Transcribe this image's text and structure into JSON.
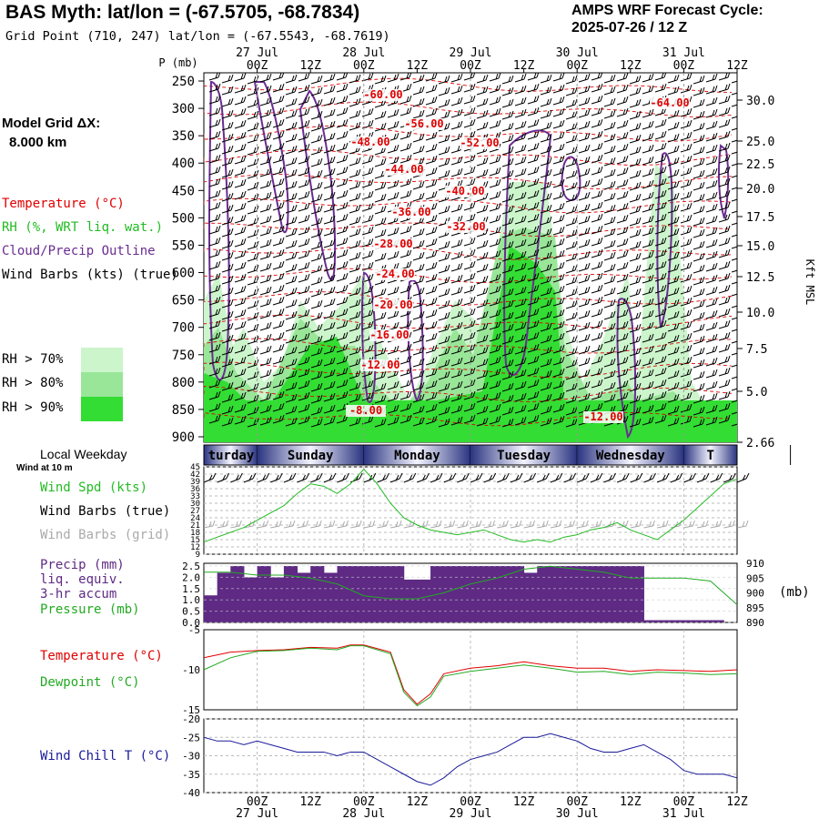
{
  "header": {
    "title": "BAS Myth:  lat/lon = (-67.5705, -68.7834)",
    "subtitle": "Grid Point (710, 247) lat/lon = (-67.5543, -68.7619)",
    "cycle_line1": "AMPS WRF Forecast Cycle:",
    "cycle_line2": "2025-07-26 / 12  Z"
  },
  "model_grid": {
    "label": "Model Grid ΔX:",
    "value": "8.000 km"
  },
  "legends": {
    "temperature": "Temperature (°C)",
    "rh": "RH (%, WRT liq. wat.)",
    "cloud": "Cloud/Precip Outline",
    "wind_barbs_true": "Wind Barbs (kts) (true)",
    "rh_thresholds": [
      "RH > 70%",
      "RH > 80%",
      "RH > 90%"
    ],
    "local_weekday": "Local Weekday",
    "wind_at": "Wind at 10 m",
    "wind_spd": "Wind Spd (kts)",
    "wind_barbs_true2": "Wind Barbs (true)",
    "wind_barbs_grid": "Wind Barbs (grid)",
    "precip": [
      "Precip (mm)",
      "liq. equiv.",
      "3-hr accum"
    ],
    "pressure": "Pressure (mb)",
    "pressure_unit": "(mb)",
    "temp2": "Temperature (°C)",
    "dewpoint": "Dewpoint (°C)",
    "windchill": "Wind Chill T (°C)"
  },
  "colors": {
    "temperature": "#e00000",
    "rh": "#22bb22",
    "cloud": "#6a2c91",
    "wind_grid": "#aaaaaa",
    "precip": "#5e2a84",
    "pressure": "#22aa22",
    "windchill": "#1a1a9a",
    "rh70": "#ccf5cc",
    "rh80": "#99e699",
    "rh90": "#33dd33"
  },
  "chart_data": [
    {
      "type": "heatmap",
      "name": "cross-section",
      "title": "",
      "y_axis_label": "P (mb)",
      "y_ticks": [
        250,
        300,
        350,
        400,
        450,
        500,
        550,
        600,
        650,
        700,
        750,
        800,
        850,
        900
      ],
      "right_axis_ticks": [
        "30.0",
        "25.0",
        "22.5",
        "20.0",
        "17.5",
        "15.0",
        "12.5",
        "10.0",
        "7.5",
        "5.0",
        "2.66"
      ],
      "right_axis_label": "Kft MSL",
      "top_date_labels": [
        "27 Jul",
        "28 Jul",
        "29 Jul",
        "30 Jul",
        "31 Jul"
      ],
      "time_labels": [
        "00Z",
        "12Z",
        "00Z",
        "12Z",
        "00Z",
        "12Z",
        "00Z",
        "12Z",
        "00Z",
        "12Z"
      ],
      "temperature_contour_labels": [
        "-60.00",
        "-56.00",
        "-52.00",
        "-48.00",
        "-44.00",
        "-40.00",
        "-36.00",
        "-32.00",
        "-28.00",
        "-24.00",
        "-20.00",
        "-16.00",
        "-12.00",
        "-8.00",
        "-12.00",
        "-64.00"
      ]
    },
    {
      "type": "table",
      "name": "weekday-bar",
      "days": [
        "Saturday",
        "Sunday",
        "Monday",
        "Tuesday",
        "Wednesday",
        "Thursday"
      ],
      "visible_labels": [
        "turday",
        "Sunday",
        "Monday",
        "Tuesday",
        "Wednesday",
        "T"
      ]
    },
    {
      "type": "line",
      "name": "wind-speed",
      "y_ticks": [
        9,
        12,
        15,
        18,
        21,
        24,
        27,
        30,
        33,
        36,
        39,
        42,
        45
      ],
      "ylim": [
        9,
        45
      ],
      "hours": [
        0,
        3,
        6,
        9,
        12,
        15,
        18,
        21,
        24,
        27,
        30,
        33,
        36,
        39,
        42,
        45,
        48,
        51,
        54,
        57,
        60,
        63,
        66,
        69,
        72,
        75,
        78,
        81,
        84,
        87,
        90,
        93,
        96,
        99,
        102,
        105,
        108,
        111,
        114,
        117,
        120
      ],
      "values": [
        14,
        16,
        18,
        20,
        23,
        26,
        29,
        34,
        38,
        37,
        34,
        38,
        44,
        38,
        30,
        24,
        21,
        19,
        18,
        17,
        18,
        19,
        17,
        15,
        14,
        15,
        14,
        16,
        17,
        19,
        20,
        22,
        19,
        17,
        15,
        19,
        23,
        28,
        33,
        38,
        40
      ]
    },
    {
      "type": "bar",
      "name": "precip-pressure",
      "y_ticks": [
        0.0,
        0.5,
        1.0,
        1.5,
        2.0,
        2.5
      ],
      "ylim": [
        0,
        2.5
      ],
      "right_ticks": [
        890,
        895,
        900,
        905,
        910
      ],
      "right_lim": [
        890,
        910
      ],
      "precip_hours": [
        0,
        3,
        6,
        9,
        12,
        15,
        18,
        21,
        24,
        27,
        30,
        33,
        36,
        39,
        42,
        45,
        48,
        51,
        54,
        57,
        60,
        63,
        66,
        69,
        72,
        75,
        78,
        81,
        84,
        87,
        90,
        93,
        96,
        99,
        102,
        105,
        108,
        111,
        114,
        117
      ],
      "precip_values": [
        1.2,
        2.2,
        2.5,
        2.0,
        2.5,
        2.0,
        2.5,
        2.2,
        2.5,
        2.2,
        2.5,
        2.5,
        2.5,
        2.5,
        2.5,
        1.9,
        1.9,
        2.5,
        2.5,
        2.5,
        2.5,
        2.5,
        2.5,
        2.5,
        2.2,
        2.5,
        2.5,
        2.5,
        2.5,
        2.5,
        2.5,
        2.5,
        2.5,
        0.1,
        0.1,
        0.1,
        0.1,
        0.1,
        0.1,
        0.0
      ],
      "pressure_hours": [
        0,
        6,
        12,
        18,
        24,
        30,
        36,
        42,
        48,
        54,
        60,
        66,
        72,
        78,
        84,
        90,
        96,
        102,
        108,
        114,
        120
      ],
      "pressure_values": [
        907,
        907,
        906,
        906,
        905,
        903,
        899,
        898,
        898,
        900,
        903,
        905,
        908,
        909,
        908,
        907,
        905,
        905,
        905,
        904,
        896
      ]
    },
    {
      "type": "line",
      "name": "temperature-dewpoint",
      "y_ticks": [
        -5,
        -10,
        -15
      ],
      "ylim": [
        -15,
        -5
      ],
      "hours": [
        0,
        6,
        12,
        18,
        24,
        30,
        33,
        36,
        42,
        45,
        48,
        51,
        54,
        60,
        66,
        72,
        78,
        84,
        90,
        96,
        102,
        108,
        114,
        120
      ],
      "series": [
        {
          "name": "Temperature (°C)",
          "values": [
            -8.5,
            -7.8,
            -7.6,
            -7.5,
            -7.2,
            -7.3,
            -6.9,
            -6.9,
            -7.8,
            -12.5,
            -14.3,
            -13.0,
            -10.5,
            -9.8,
            -9.5,
            -9.0,
            -9.5,
            -9.8,
            -9.8,
            -10.2,
            -10.0,
            -10.1,
            -10.2,
            -10.0
          ]
        },
        {
          "name": "Dewpoint (°C)",
          "values": [
            -10.0,
            -8.5,
            -7.7,
            -7.6,
            -7.3,
            -7.5,
            -7.0,
            -7.0,
            -8.0,
            -12.8,
            -14.5,
            -13.4,
            -10.8,
            -10.2,
            -9.8,
            -9.4,
            -9.8,
            -10.3,
            -10.2,
            -10.6,
            -10.3,
            -10.4,
            -10.6,
            -10.5
          ]
        }
      ]
    },
    {
      "type": "line",
      "name": "wind-chill",
      "y_ticks": [
        -20,
        -25,
        -30,
        -35,
        -40
      ],
      "ylim": [
        -40,
        -20
      ],
      "hours": [
        0,
        3,
        6,
        9,
        12,
        15,
        18,
        21,
        24,
        27,
        30,
        33,
        36,
        39,
        42,
        45,
        48,
        51,
        54,
        57,
        60,
        63,
        66,
        69,
        72,
        75,
        78,
        81,
        84,
        87,
        90,
        93,
        96,
        99,
        102,
        105,
        108,
        111,
        114,
        117,
        120
      ],
      "values": [
        -25,
        -26,
        -26,
        -27,
        -26,
        -27,
        -28,
        -29,
        -29,
        -29,
        -30,
        -29,
        -29,
        -31,
        -33,
        -35,
        -37,
        -38,
        -36,
        -33,
        -31,
        -30,
        -29,
        -27,
        -25,
        -25,
        -24,
        -25,
        -26,
        -28,
        -29,
        -29,
        -28,
        -27,
        -29,
        -31,
        -34,
        -35,
        -35,
        -35,
        -36
      ],
      "bottom_time_labels": [
        "00Z",
        "12Z",
        "00Z",
        "12Z",
        "00Z",
        "12Z",
        "00Z",
        "12Z",
        "00Z",
        "12Z"
      ],
      "bottom_date_labels": [
        "27 Jul",
        "28 Jul",
        "29 Jul",
        "30 Jul",
        "31 Jul"
      ]
    }
  ]
}
